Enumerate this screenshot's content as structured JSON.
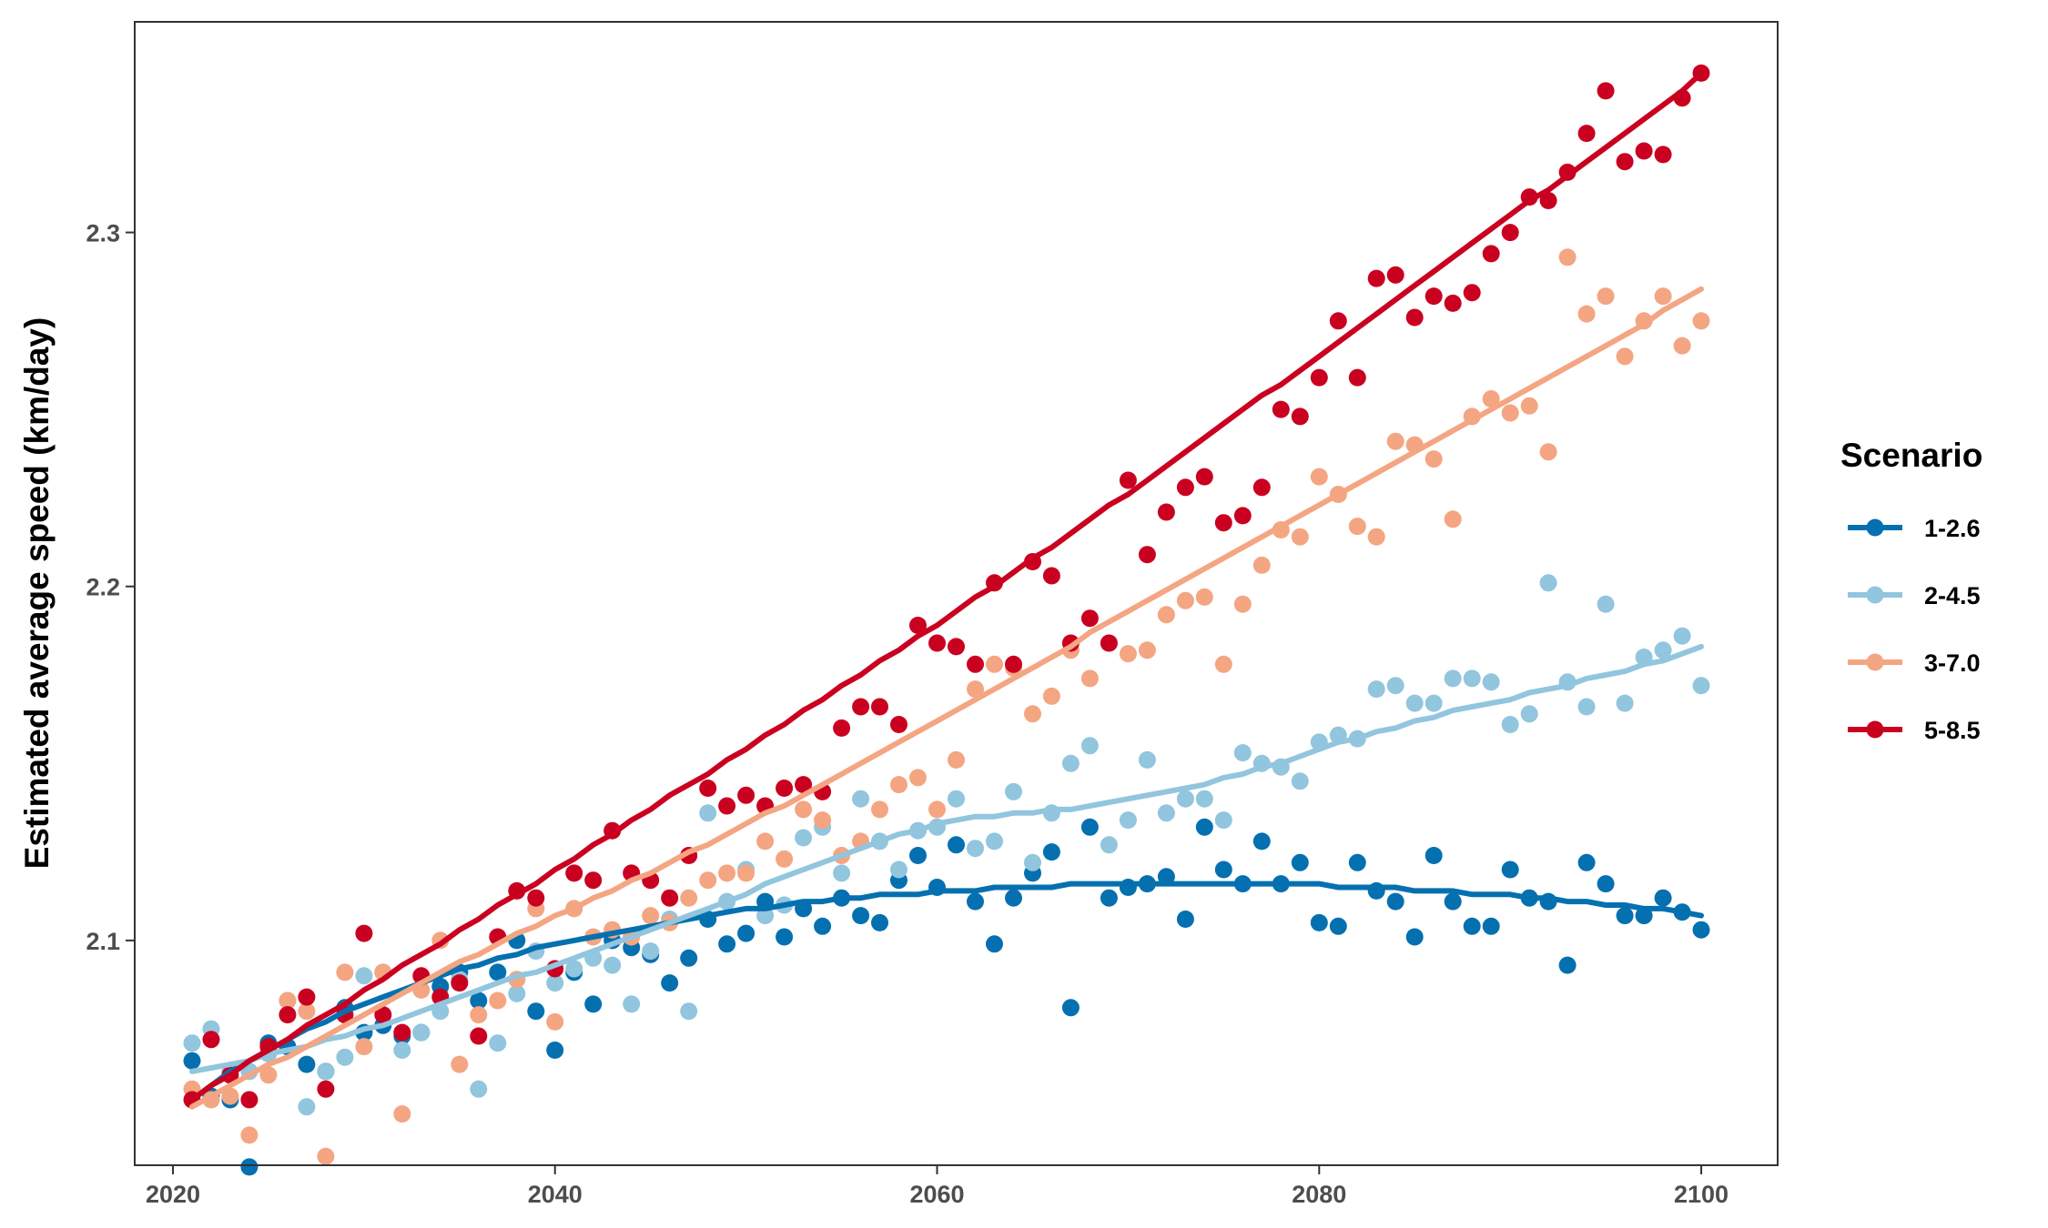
{
  "chart_data": {
    "type": "scatter",
    "title": "",
    "xlabel": "",
    "ylabel": "Estimated average speed (km/day)",
    "xlim": [
      2018,
      2104
    ],
    "ylim": [
      2.0365,
      2.3595
    ],
    "xticks": [
      2020,
      2040,
      2060,
      2080,
      2100
    ],
    "xtick_labels": [
      "2020",
      "2040",
      "2060",
      "2080",
      "2100"
    ],
    "yticks": [
      2.1,
      2.2,
      2.3
    ],
    "ytick_labels": [
      "2.1",
      "2.2",
      "2.3"
    ],
    "grid": false,
    "legend": {
      "title": "Scenario",
      "position": "right"
    },
    "x": [
      2021,
      2022,
      2023,
      2024,
      2025,
      2026,
      2027,
      2028,
      2029,
      2030,
      2031,
      2032,
      2033,
      2034,
      2035,
      2036,
      2037,
      2038,
      2039,
      2040,
      2041,
      2042,
      2043,
      2044,
      2045,
      2046,
      2047,
      2048,
      2049,
      2050,
      2051,
      2052,
      2053,
      2054,
      2055,
      2056,
      2057,
      2058,
      2059,
      2060,
      2061,
      2062,
      2063,
      2064,
      2065,
      2066,
      2067,
      2068,
      2069,
      2070,
      2071,
      2072,
      2073,
      2074,
      2075,
      2076,
      2077,
      2078,
      2079,
      2080,
      2081,
      2082,
      2083,
      2084,
      2085,
      2086,
      2087,
      2088,
      2089,
      2090,
      2091,
      2092,
      2093,
      2094,
      2095,
      2096,
      2097,
      2098,
      2099,
      2100
    ],
    "series": [
      {
        "name": "1-2.6",
        "color": "#0570b0",
        "values": [
          2.066,
          2.056,
          2.055,
          2.036,
          2.071,
          2.07,
          2.065,
          2.063,
          2.081,
          2.074,
          2.076,
          2.073,
          2.074,
          2.087,
          2.091,
          2.083,
          2.091,
          2.1,
          2.08,
          2.069,
          2.091,
          2.082,
          2.1,
          2.098,
          2.096,
          2.088,
          2.095,
          2.106,
          2.099,
          2.102,
          2.111,
          2.101,
          2.109,
          2.104,
          2.112,
          2.107,
          2.105,
          2.117,
          2.124,
          2.115,
          2.127,
          2.111,
          2.099,
          2.112,
          2.119,
          2.125,
          2.081,
          2.132,
          2.112,
          2.115,
          2.116,
          2.118,
          2.106,
          2.132,
          2.12,
          2.116,
          2.128,
          2.116,
          2.122,
          2.105,
          2.104,
          2.122,
          2.114,
          2.111,
          2.101,
          2.124,
          2.111,
          2.104,
          2.104,
          2.12,
          2.112,
          2.111,
          2.093,
          2.122,
          2.116,
          2.107,
          2.107,
          2.112,
          2.108,
          2.103
        ],
        "fit": [
          2.055,
          2.059,
          2.063,
          2.066,
          2.069,
          2.072,
          2.075,
          2.077,
          2.08,
          2.082,
          2.084,
          2.086,
          2.088,
          2.09,
          2.092,
          2.093,
          2.095,
          2.096,
          2.098,
          2.099,
          2.1,
          2.101,
          2.102,
          2.103,
          2.104,
          2.105,
          2.106,
          2.107,
          2.108,
          2.109,
          2.109,
          2.11,
          2.111,
          2.111,
          2.112,
          2.112,
          2.113,
          2.113,
          2.113,
          2.114,
          2.114,
          2.114,
          2.115,
          2.115,
          2.115,
          2.115,
          2.116,
          2.116,
          2.116,
          2.116,
          2.116,
          2.116,
          2.116,
          2.116,
          2.116,
          2.116,
          2.116,
          2.116,
          2.116,
          2.116,
          2.115,
          2.115,
          2.115,
          2.115,
          2.114,
          2.114,
          2.114,
          2.113,
          2.113,
          2.113,
          2.112,
          2.112,
          2.111,
          2.111,
          2.11,
          2.11,
          2.109,
          2.109,
          2.108,
          2.107
        ]
      },
      {
        "name": "2-4.5",
        "color": "#92c5de",
        "values": [
          2.071,
          2.075,
          2.063,
          2.063,
          2.068,
          2.083,
          2.053,
          2.063,
          2.067,
          2.09,
          2.091,
          2.069,
          2.074,
          2.08,
          2.089,
          2.058,
          2.071,
          2.085,
          2.097,
          2.088,
          2.092,
          2.095,
          2.093,
          2.082,
          2.097,
          2.106,
          2.08,
          2.136,
          2.111,
          2.12,
          2.107,
          2.11,
          2.129,
          2.132,
          2.119,
          2.14,
          2.128,
          2.12,
          2.131,
          2.132,
          2.14,
          2.126,
          2.128,
          2.142,
          2.122,
          2.136,
          2.15,
          2.155,
          2.127,
          2.134,
          2.151,
          2.136,
          2.14,
          2.14,
          2.134,
          2.153,
          2.15,
          2.149,
          2.145,
          2.156,
          2.158,
          2.157,
          2.171,
          2.172,
          2.167,
          2.167,
          2.174,
          2.174,
          2.173,
          2.161,
          2.164,
          2.201,
          2.173,
          2.166,
          2.195,
          2.167,
          2.18,
          2.182,
          2.186,
          2.172
        ],
        "fit": [
          2.063,
          2.064,
          2.065,
          2.066,
          2.068,
          2.069,
          2.07,
          2.072,
          2.073,
          2.075,
          2.076,
          2.078,
          2.08,
          2.082,
          2.084,
          2.086,
          2.088,
          2.09,
          2.091,
          2.093,
          2.095,
          2.097,
          2.099,
          2.101,
          2.103,
          2.105,
          2.107,
          2.109,
          2.111,
          2.113,
          2.116,
          2.118,
          2.12,
          2.122,
          2.124,
          2.126,
          2.128,
          2.13,
          2.131,
          2.133,
          2.134,
          2.135,
          2.135,
          2.136,
          2.136,
          2.137,
          2.137,
          2.138,
          2.139,
          2.14,
          2.141,
          2.142,
          2.143,
          2.144,
          2.146,
          2.147,
          2.149,
          2.15,
          2.152,
          2.154,
          2.156,
          2.157,
          2.159,
          2.16,
          2.162,
          2.163,
          2.165,
          2.166,
          2.167,
          2.168,
          2.17,
          2.171,
          2.172,
          2.174,
          2.175,
          2.176,
          2.178,
          2.179,
          2.181,
          2.183
        ]
      },
      {
        "name": "3-7.0",
        "color": "#f4a582",
        "values": [
          2.058,
          2.055,
          2.056,
          2.045,
          2.062,
          2.083,
          2.08,
          2.039,
          2.091,
          2.07,
          2.091,
          2.051,
          2.086,
          2.1,
          2.065,
          2.079,
          2.083,
          2.089,
          2.109,
          2.077,
          2.109,
          2.101,
          2.103,
          2.101,
          2.107,
          2.105,
          2.112,
          2.117,
          2.119,
          2.119,
          2.128,
          2.123,
          2.137,
          2.134,
          2.124,
          2.128,
          2.137,
          2.144,
          2.146,
          2.137,
          2.151,
          2.171,
          2.178,
          2.177,
          2.164,
          2.169,
          2.182,
          2.174,
          2.184,
          2.181,
          2.182,
          2.192,
          2.196,
          2.197,
          2.178,
          2.195,
          2.206,
          2.216,
          2.214,
          2.231,
          2.226,
          2.217,
          2.214,
          2.241,
          2.24,
          2.236,
          2.219,
          2.248,
          2.253,
          2.249,
          2.251,
          2.238,
          2.293,
          2.277,
          2.282,
          2.265,
          2.275,
          2.282,
          2.268,
          2.275
        ],
        "fit": [
          2.053,
          2.056,
          2.059,
          2.062,
          2.065,
          2.067,
          2.07,
          2.073,
          2.076,
          2.079,
          2.082,
          2.085,
          2.088,
          2.091,
          2.094,
          2.096,
          2.099,
          2.102,
          2.104,
          2.107,
          2.109,
          2.112,
          2.114,
          2.117,
          2.119,
          2.122,
          2.125,
          2.127,
          2.13,
          2.133,
          2.136,
          2.138,
          2.141,
          2.144,
          2.147,
          2.15,
          2.153,
          2.156,
          2.159,
          2.162,
          2.165,
          2.168,
          2.171,
          2.174,
          2.177,
          2.18,
          2.183,
          2.187,
          2.19,
          2.193,
          2.196,
          2.199,
          2.202,
          2.205,
          2.208,
          2.211,
          2.214,
          2.217,
          2.22,
          2.223,
          2.226,
          2.229,
          2.232,
          2.235,
          2.238,
          2.241,
          2.244,
          2.247,
          2.25,
          2.253,
          2.256,
          2.259,
          2.262,
          2.265,
          2.268,
          2.271,
          2.274,
          2.278,
          2.281,
          2.284
        ]
      },
      {
        "name": "5-8.5",
        "color": "#ca0020",
        "values": [
          2.055,
          2.072,
          2.062,
          2.055,
          2.07,
          2.079,
          2.084,
          2.058,
          2.079,
          2.102,
          2.079,
          2.074,
          2.09,
          2.084,
          2.088,
          2.073,
          2.101,
          2.114,
          2.112,
          2.092,
          2.119,
          2.117,
          2.131,
          2.119,
          2.117,
          2.112,
          2.124,
          2.143,
          2.138,
          2.141,
          2.138,
          2.143,
          2.144,
          2.142,
          2.16,
          2.166,
          2.166,
          2.161,
          2.189,
          2.184,
          2.183,
          2.178,
          2.201,
          2.178,
          2.207,
          2.203,
          2.184,
          2.191,
          2.184,
          2.23,
          2.209,
          2.221,
          2.228,
          2.231,
          2.218,
          2.22,
          2.228,
          2.25,
          2.248,
          2.259,
          2.275,
          2.259,
          2.287,
          2.288,
          2.276,
          2.282,
          2.28,
          2.283,
          2.294,
          2.3,
          2.31,
          2.309,
          2.317,
          2.328,
          2.34,
          2.32,
          2.323,
          2.322,
          2.338,
          2.345
        ],
        "fit": [
          2.055,
          2.059,
          2.062,
          2.066,
          2.069,
          2.072,
          2.076,
          2.079,
          2.082,
          2.086,
          2.089,
          2.093,
          2.096,
          2.099,
          2.103,
          2.106,
          2.11,
          2.113,
          2.116,
          2.12,
          2.123,
          2.127,
          2.13,
          2.134,
          2.137,
          2.141,
          2.144,
          2.147,
          2.151,
          2.154,
          2.158,
          2.161,
          2.165,
          2.168,
          2.172,
          2.175,
          2.179,
          2.182,
          2.186,
          2.189,
          2.193,
          2.197,
          2.2,
          2.204,
          2.208,
          2.211,
          2.215,
          2.219,
          2.223,
          2.226,
          2.23,
          2.234,
          2.238,
          2.242,
          2.246,
          2.25,
          2.254,
          2.257,
          2.261,
          2.265,
          2.269,
          2.273,
          2.277,
          2.281,
          2.285,
          2.289,
          2.293,
          2.297,
          2.301,
          2.305,
          2.309,
          2.312,
          2.316,
          2.32,
          2.324,
          2.328,
          2.332,
          2.336,
          2.34,
          2.345
        ]
      }
    ]
  }
}
